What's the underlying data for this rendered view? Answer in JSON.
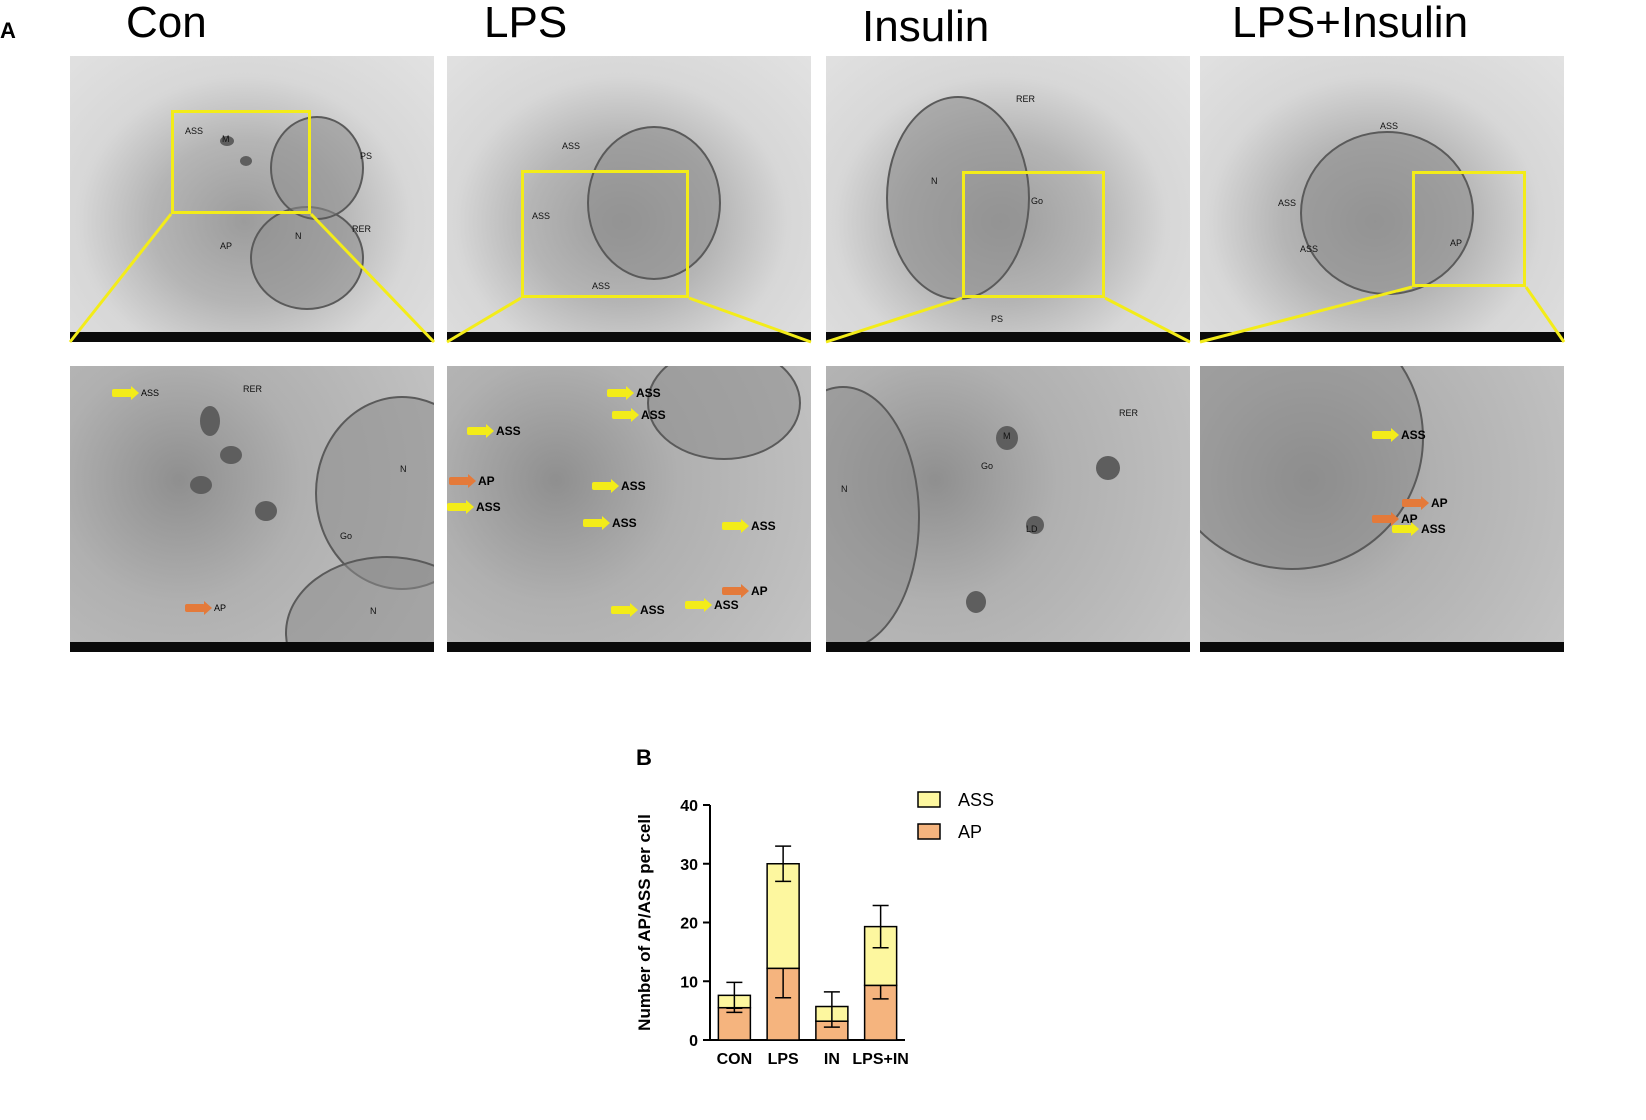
{
  "panels": {
    "a": "A",
    "b": "B"
  },
  "groups": [
    {
      "title": "Con"
    },
    {
      "title": "LPS"
    },
    {
      "title": "Insulin"
    },
    {
      "title": "LPS+Insulin"
    }
  ],
  "micro_labels": {
    "ass": "ASS",
    "ap": "AP",
    "m": "M",
    "n": "N",
    "rer": "RER",
    "go": "Go",
    "ps": "PS",
    "ld": "LD"
  },
  "colors": {
    "roi": "#f3ec19",
    "ass_fill": "#fdf79f",
    "ap_fill": "#f5b47e",
    "arrow_yellow": "#f3ec19",
    "arrow_orange": "#e47a3a"
  },
  "chart_data": {
    "type": "bar",
    "stacked": true,
    "categories": [
      "CON",
      "LPS",
      "IN",
      "LPS+IN"
    ],
    "ylabel": "Number of AP/ASS per cell",
    "xlabel": "",
    "ylim": [
      0,
      40
    ],
    "yticks": [
      "0",
      "10",
      "20",
      "30",
      "40"
    ],
    "legend_position": "top-right",
    "series": [
      {
        "name": "AP",
        "color": "#f5b47e",
        "values": [
          5.5,
          12.2,
          3.2,
          9.3
        ],
        "errors": [
          0.8,
          5.0,
          1.0,
          2.3
        ]
      },
      {
        "name": "ASS",
        "color": "#fdf79f",
        "values": [
          2.1,
          17.8,
          2.5,
          10.0
        ],
        "errors": [
          2.2,
          3.0,
          2.5,
          3.6
        ]
      }
    ],
    "legend": [
      "ASS",
      "AP"
    ]
  }
}
